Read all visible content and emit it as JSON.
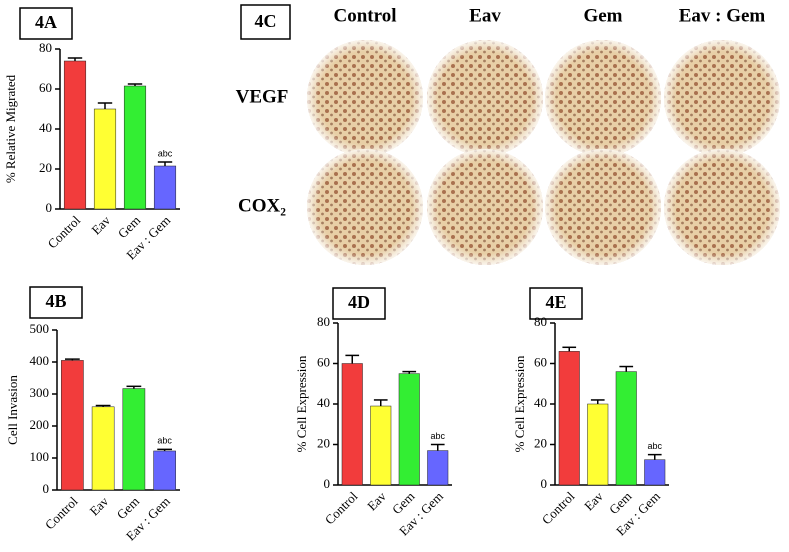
{
  "chart_data": [
    {
      "type": "bar",
      "title": "4A",
      "y_label": "% Relative Migrated",
      "categories": [
        "Control",
        "Eav",
        "Gem",
        "Eav : Gem"
      ],
      "values": [
        74,
        50,
        61.5,
        21.5
      ],
      "errors": [
        1.5,
        3,
        1,
        2
      ],
      "value_annotations": [
        null,
        null,
        null,
        "abc"
      ],
      "colors": [
        "#f23c3c",
        "#ffff33",
        "#33ee33",
        "#6666ff"
      ],
      "ylim": [
        0,
        80
      ],
      "yticks": [
        0,
        20,
        40,
        60,
        80
      ]
    },
    {
      "type": "bar",
      "title": "4B",
      "y_label": "Cell Invasion",
      "categories": [
        "Control",
        "Eav",
        "Gem",
        "Eav : Gem"
      ],
      "values": [
        405,
        260,
        317,
        122
      ],
      "errors": [
        4,
        4,
        7,
        5
      ],
      "value_annotations": [
        null,
        null,
        null,
        "abc"
      ],
      "colors": [
        "#f23c3c",
        "#ffff33",
        "#33ee33",
        "#6666ff"
      ],
      "ylim": [
        0,
        500
      ],
      "yticks": [
        0,
        100,
        200,
        300,
        400,
        500
      ]
    },
    {
      "type": "bar",
      "title": "4D",
      "y_label": "% Cell  Expression",
      "categories": [
        "Control",
        "Eav",
        "Gem",
        "Eav : Gem"
      ],
      "values": [
        60,
        39,
        55,
        17
      ],
      "errors": [
        4,
        3,
        1,
        3
      ],
      "value_annotations": [
        null,
        null,
        null,
        "abc"
      ],
      "colors": [
        "#f23c3c",
        "#ffff33",
        "#33ee33",
        "#6666ff"
      ],
      "ylim": [
        0,
        80
      ],
      "yticks": [
        0,
        20,
        40,
        60,
        80
      ]
    },
    {
      "type": "bar",
      "title": "4E",
      "y_label": "% Cell Expression",
      "categories": [
        "Control",
        "Eav",
        "Gem",
        "Eav : Gem"
      ],
      "values": [
        66,
        40,
        56,
        12.5
      ],
      "errors": [
        2,
        2,
        2.5,
        2.5
      ],
      "value_annotations": [
        null,
        null,
        null,
        "abc"
      ],
      "colors": [
        "#f23c3c",
        "#ffff33",
        "#33ee33",
        "#6666ff"
      ],
      "ylim": [
        0,
        80
      ],
      "yticks": [
        0,
        20,
        40,
        60,
        80
      ]
    }
  ],
  "micrographs": {
    "label": "4C",
    "columns": [
      "Control",
      "Eav",
      "Gem",
      "Eav : Gem"
    ],
    "rows": [
      "VEGF",
      "COX₂"
    ]
  }
}
